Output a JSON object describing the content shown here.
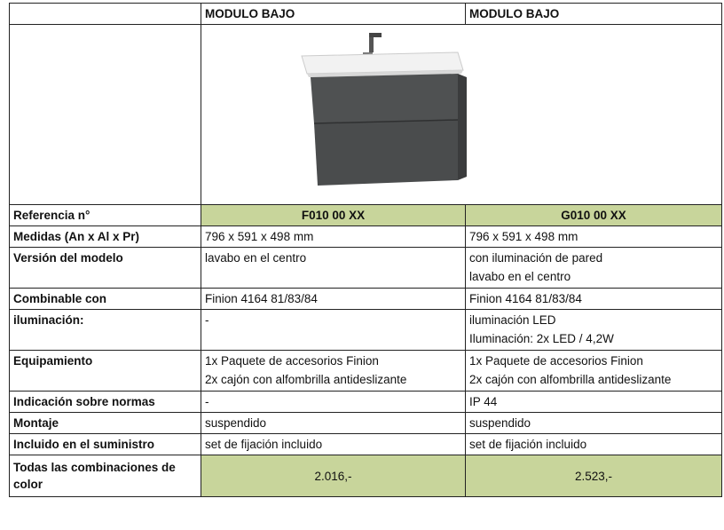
{
  "table": {
    "header": [
      "MODULO BAJO",
      "MODULO BAJO"
    ],
    "rows": [
      {
        "label": "Referencia n°",
        "cells": [
          [
            "F010 00 XX"
          ],
          [
            "G010 00 XX"
          ]
        ]
      },
      {
        "label": "Medidas (An x Al x Pr)",
        "cells": [
          [
            "796 x 591 x 498 mm"
          ],
          [
            "796 x 591 x 498 mm"
          ]
        ]
      },
      {
        "label": "Versión del modelo",
        "cells": [
          [
            "lavabo en el centro"
          ],
          [
            "con iluminación de pared",
            "lavabo en el centro"
          ]
        ]
      },
      {
        "label": "Combinable con",
        "cells": [
          [
            "Finion 4164 81/83/84"
          ],
          [
            "Finion 4164 81/83/84"
          ]
        ]
      },
      {
        "label": "iluminación:",
        "cells": [
          [
            "-"
          ],
          [
            "iluminación LED",
            "Iluminación: 2x LED / 4,2W"
          ]
        ]
      },
      {
        "label": "Equipamiento",
        "cells": [
          [
            "1x Paquete de accesorios Finion",
            "2x cajón con alfombrilla antideslizante"
          ],
          [
            "1x Paquete de accesorios Finion",
            "2x cajón con alfombrilla antideslizante"
          ]
        ]
      },
      {
        "label": "Indicación sobre normas",
        "cells": [
          [
            "-"
          ],
          [
            "IP 44"
          ]
        ]
      },
      {
        "label": "Montaje",
        "cells": [
          [
            "suspendido"
          ],
          [
            "suspendido"
          ]
        ]
      },
      {
        "label": "Incluido en el suministro",
        "cells": [
          [
            "set de fijación incluido"
          ],
          [
            "set de fijación incluido"
          ]
        ]
      },
      {
        "label": "Todas las combinaciones de color",
        "cells": [
          [
            "2.016,-"
          ],
          [
            "2.523,-"
          ]
        ]
      }
    ]
  }
}
